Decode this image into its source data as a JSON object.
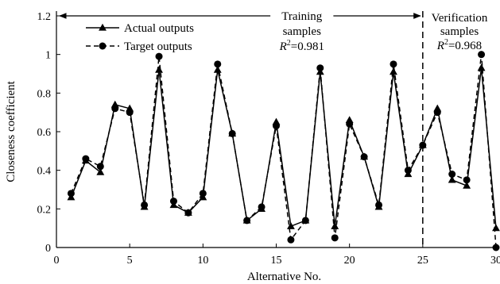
{
  "chart_data": {
    "type": "line",
    "xlabel": "Alternative No.",
    "ylabel": "Closeness coefficient",
    "xlim": [
      0,
      30
    ],
    "ylim": [
      0,
      1.2
    ],
    "xticks": [
      0,
      5,
      10,
      15,
      20,
      25,
      30
    ],
    "yticks": [
      0,
      0.2,
      0.4,
      0.6,
      0.8,
      1,
      1.2
    ],
    "ytick_labels": [
      "0",
      "0.2",
      "0.4",
      "0.6",
      "0.8",
      "1",
      "1.2"
    ],
    "grid": false,
    "legend_position": "top-left",
    "x": [
      1,
      2,
      3,
      4,
      5,
      6,
      7,
      8,
      9,
      10,
      11,
      12,
      13,
      14,
      15,
      16,
      17,
      18,
      19,
      20,
      21,
      22,
      23,
      24,
      25,
      26,
      27,
      28,
      29,
      30
    ],
    "series": [
      {
        "name": "Actual outputs",
        "marker": "triangle",
        "line_style": "solid",
        "values": [
          0.26,
          0.45,
          0.39,
          0.74,
          0.72,
          0.21,
          0.92,
          0.22,
          0.18,
          0.26,
          0.92,
          0.59,
          0.14,
          0.2,
          0.65,
          0.11,
          0.14,
          0.91,
          0.11,
          0.66,
          0.47,
          0.21,
          0.91,
          0.38,
          0.53,
          0.72,
          0.35,
          0.32,
          0.93,
          0.1
        ]
      },
      {
        "name": "Target outputs",
        "marker": "circle",
        "line_style": "dashed",
        "values": [
          0.28,
          0.46,
          0.42,
          0.72,
          0.7,
          0.22,
          0.99,
          0.24,
          0.18,
          0.28,
          0.95,
          0.59,
          0.14,
          0.21,
          0.63,
          0.04,
          0.14,
          0.93,
          0.05,
          0.64,
          0.47,
          0.22,
          0.95,
          0.4,
          0.53,
          0.7,
          0.38,
          0.35,
          1.0,
          0.0
        ]
      }
    ],
    "divider_x": 25,
    "annotations": {
      "training_line1": "Training",
      "training_line2": "samples",
      "training_r2_label": "R",
      "training_r2_sup": "2",
      "training_r2_value": "=0.981",
      "verification_line1": "Verification",
      "verification_line2": "samples",
      "verification_r2_label": "R",
      "verification_r2_sup": "2",
      "verification_r2_value": "=0.968"
    }
  }
}
